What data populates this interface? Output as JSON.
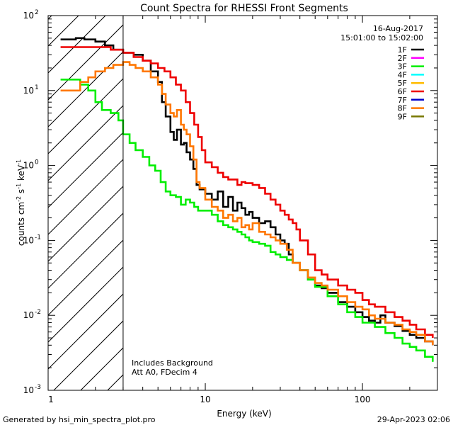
{
  "chart_data": {
    "type": "line",
    "title": "Count Spectra for RHESSI Front Segments",
    "xlabel": "Energy (keV)",
    "ylabel_parts": [
      "counts cm",
      "-2",
      " s",
      "-1",
      " keV",
      "-1"
    ],
    "x_scale": "log",
    "y_scale": "log",
    "xlim": [
      1,
      300
    ],
    "ylim": [
      0.001,
      100
    ],
    "x_ticks": [
      {
        "value": 10,
        "label": "10"
      },
      {
        "value": 100,
        "label": "100"
      }
    ],
    "y_ticks": [
      {
        "value": 0.001,
        "base": "10",
        "exp": "-3"
      },
      {
        "value": 0.01,
        "base": "10",
        "exp": "-2"
      },
      {
        "value": 0.1,
        "base": "10",
        "exp": "-1"
      },
      {
        "value": 1,
        "base": "10",
        "exp": "0"
      },
      {
        "value": 10,
        "base": "10",
        "exp": "1"
      },
      {
        "value": 100,
        "base": "10",
        "exp": "2"
      }
    ],
    "date": "16-Aug-2017",
    "time_range": "15:01:00 to 15:02:00",
    "notes": [
      "Includes Background",
      "Att A0, FDecim 4"
    ],
    "attenuator_threshold_kev": 3,
    "legend": [
      {
        "label": "1F",
        "color": "#000000"
      },
      {
        "label": "2F",
        "color": "#ff00ff"
      },
      {
        "label": "3F",
        "color": "#00ee00"
      },
      {
        "label": "4F",
        "color": "#00ffff"
      },
      {
        "label": "5F",
        "color": "#ffbb00"
      },
      {
        "label": "6F",
        "color": "#ee0000"
      },
      {
        "label": "7F",
        "color": "#0000cc"
      },
      {
        "label": "8F",
        "color": "#ff7700"
      },
      {
        "label": "9F",
        "color": "#777700"
      }
    ],
    "series": [
      {
        "name": "1F",
        "color": "#000000",
        "x": [
          1.2,
          1.5,
          1.7,
          2.0,
          2.3,
          2.6,
          3.0,
          3.5,
          4.0,
          4.5,
          5.0,
          5.3,
          5.6,
          6.0,
          6.3,
          6.6,
          7.0,
          7.3,
          7.6,
          8.0,
          8.4,
          8.8,
          9.2,
          10,
          11,
          12,
          13,
          14,
          15,
          16,
          17,
          18,
          19,
          20,
          22,
          24,
          26,
          28,
          30,
          32,
          34,
          36,
          40,
          45,
          50,
          55,
          60,
          70,
          80,
          90,
          100,
          110,
          120,
          130,
          140,
          160,
          180,
          200,
          220,
          250,
          280
        ],
        "y": [
          48,
          50,
          48,
          45,
          40,
          35,
          32,
          30,
          25,
          18,
          13,
          7,
          4.5,
          2.8,
          2.2,
          3.0,
          1.9,
          2.0,
          1.5,
          1.2,
          0.9,
          0.55,
          0.48,
          0.42,
          0.35,
          0.45,
          0.28,
          0.38,
          0.25,
          0.32,
          0.27,
          0.22,
          0.24,
          0.2,
          0.17,
          0.18,
          0.15,
          0.12,
          0.1,
          0.09,
          0.065,
          0.05,
          0.04,
          0.03,
          0.025,
          0.023,
          0.02,
          0.015,
          0.013,
          0.011,
          0.0095,
          0.0085,
          0.008,
          0.01,
          0.008,
          0.0072,
          0.0062,
          0.0055,
          0.005,
          0.0045,
          0.004
        ]
      },
      {
        "name": "3F",
        "color": "#00ee00",
        "x": [
          1.2,
          1.4,
          1.6,
          1.8,
          2.0,
          2.2,
          2.5,
          2.8,
          3.0,
          3.3,
          3.6,
          4.0,
          4.4,
          4.8,
          5.2,
          5.6,
          6.0,
          6.5,
          7.0,
          7.5,
          8.0,
          8.5,
          9.0,
          10,
          11,
          12,
          13,
          14,
          15,
          16,
          17,
          18,
          19,
          20,
          22,
          24,
          26,
          28,
          30,
          33,
          36,
          40,
          45,
          50,
          60,
          70,
          80,
          90,
          100,
          120,
          140,
          160,
          180,
          200,
          220,
          250,
          280
        ],
        "y": [
          14,
          14,
          12,
          10,
          7.0,
          5.5,
          5.0,
          4.0,
          2.6,
          2.0,
          1.6,
          1.3,
          1.0,
          0.85,
          0.6,
          0.45,
          0.4,
          0.38,
          0.3,
          0.35,
          0.32,
          0.28,
          0.25,
          0.25,
          0.22,
          0.18,
          0.16,
          0.15,
          0.14,
          0.13,
          0.12,
          0.11,
          0.1,
          0.095,
          0.09,
          0.085,
          0.07,
          0.065,
          0.06,
          0.055,
          0.05,
          0.04,
          0.03,
          0.024,
          0.018,
          0.014,
          0.011,
          0.0095,
          0.008,
          0.007,
          0.0058,
          0.005,
          0.0042,
          0.0038,
          0.0034,
          0.0028,
          0.0024
        ]
      },
      {
        "name": "6F",
        "color": "#ee0000",
        "x": [
          1.2,
          1.5,
          2.0,
          2.5,
          3.0,
          3.5,
          4.0,
          4.5,
          5.0,
          5.5,
          6.0,
          6.5,
          7.0,
          7.5,
          8.0,
          8.5,
          9.0,
          9.5,
          10,
          11,
          12,
          13,
          14,
          15,
          16,
          17,
          18,
          20,
          22,
          24,
          26,
          28,
          30,
          32,
          34,
          36,
          38,
          40,
          45,
          50,
          55,
          60,
          70,
          80,
          90,
          100,
          110,
          120,
          140,
          160,
          180,
          200,
          220,
          250,
          280
        ],
        "y": [
          38,
          38,
          38,
          35,
          32,
          28,
          25,
          23,
          20,
          18,
          15,
          12,
          10,
          7,
          5,
          3.5,
          2.4,
          1.6,
          1.1,
          0.95,
          0.8,
          0.7,
          0.65,
          0.65,
          0.55,
          0.6,
          0.58,
          0.55,
          0.5,
          0.42,
          0.35,
          0.3,
          0.25,
          0.22,
          0.19,
          0.17,
          0.14,
          0.1,
          0.065,
          0.04,
          0.035,
          0.03,
          0.025,
          0.022,
          0.02,
          0.016,
          0.014,
          0.013,
          0.011,
          0.0095,
          0.0085,
          0.0075,
          0.0065,
          0.0055,
          0.005
        ]
      },
      {
        "name": "8F",
        "color": "#ff7700",
        "x": [
          1.2,
          1.4,
          1.6,
          1.8,
          2.0,
          2.3,
          2.6,
          3.0,
          3.3,
          3.6,
          4.0,
          4.5,
          5.0,
          5.3,
          5.6,
          6.0,
          6.3,
          6.6,
          7.0,
          7.3,
          7.6,
          8.0,
          8.4,
          8.8,
          9.2,
          10,
          11,
          12,
          13,
          14,
          15,
          16,
          17,
          18,
          19,
          20,
          22,
          24,
          26,
          28,
          30,
          33,
          36,
          40,
          45,
          50,
          55,
          60,
          70,
          80,
          90,
          100,
          110,
          120,
          140,
          160,
          180,
          200,
          220,
          250,
          280
        ],
        "y": [
          10,
          10,
          13,
          15,
          18,
          20,
          22,
          24,
          22,
          20,
          18,
          15,
          12,
          9,
          6.5,
          5,
          4.5,
          5.5,
          3.5,
          3.0,
          2.6,
          1.8,
          1.2,
          0.6,
          0.5,
          0.35,
          0.28,
          0.25,
          0.2,
          0.22,
          0.18,
          0.2,
          0.15,
          0.16,
          0.14,
          0.17,
          0.13,
          0.12,
          0.11,
          0.1,
          0.09,
          0.075,
          0.05,
          0.04,
          0.032,
          0.027,
          0.025,
          0.022,
          0.018,
          0.015,
          0.013,
          0.012,
          0.01,
          0.009,
          0.008,
          0.0075,
          0.0065,
          0.006,
          0.0055,
          0.0045,
          0.004
        ]
      }
    ]
  },
  "footer": {
    "generated_by": "Generated by hsi_min_spectra_plot.pro",
    "timestamp": "29-Apr-2023 02:06"
  }
}
